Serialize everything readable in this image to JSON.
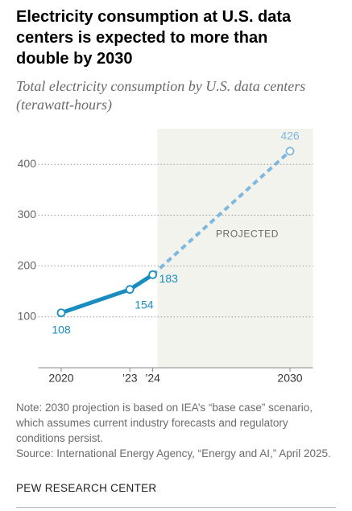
{
  "chart_data": {
    "type": "line",
    "title": "Electricity consumption at U.S. data centers is expected to more than double by 2030",
    "subtitle": "Total electricity consumption by U.S. data centers (terawatt-hours)",
    "x": [
      2020,
      2023,
      2024,
      2030
    ],
    "values": [
      108,
      154,
      183,
      426
    ],
    "color": "#1a8dc0",
    "projected_color": "#7fb8de",
    "projected_from": 2024,
    "shaded_region": {
      "label": "PROJECTED",
      "x": [
        2024,
        2031
      ]
    },
    "xlim": [
      2019,
      2031
    ],
    "xticks": [
      2020,
      {
        "value": 2023,
        "label": "’23"
      },
      {
        "value": 2024,
        "label": "’24"
      },
      2030
    ],
    "ylim": [
      0,
      470
    ],
    "yticks": [
      100,
      200,
      300,
      400
    ],
    "grid": true,
    "note": "Note: 2030 projection is based on IEA’s “base case” scenario, which assumes current industry forecasts and regulatory conditions persist.",
    "source": "Source: International Energy Agency, “Energy and AI,” April 2025.",
    "footer": "PEW RESEARCH CENTER"
  }
}
